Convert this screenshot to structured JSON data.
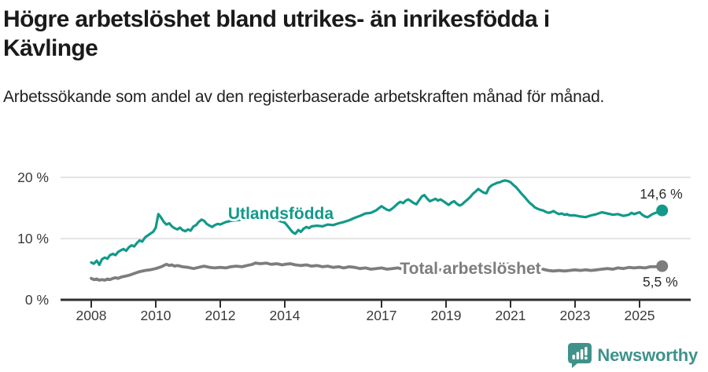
{
  "header": {
    "title": "Högre arbetslöshet bland utrikes- än inrikesfödda i Kävlinge",
    "subtitle": "Arbetssökande som andel av den registerbaserade arbetskraften månad för månad."
  },
  "footer": {
    "brand": "Newsworthy",
    "logo_icon": "bar-chart-speech-bubble-icon"
  },
  "colors": {
    "accent_teal": "#12998a",
    "series_gray": "#7d7d7d",
    "gridline": "#dcdcdc",
    "axis": "#2f2f2f",
    "tick_text": "#3a3a3a",
    "annotation_text": "#2b2b2b",
    "brand_teal": "#3f928b"
  },
  "chart_data": {
    "type": "line",
    "title": "Högre arbetslöshet bland utrikes- än inrikesfödda i Kävlinge",
    "subtitle": "Arbetssökande som andel av den registerbaserade arbetskraften månad för månad.",
    "xlabel": "",
    "ylabel": "",
    "xlim": [
      2007.6,
      2026.3
    ],
    "ylim": [
      0,
      21.5
    ],
    "grid": "horizontal",
    "legend_position": "inline-labels",
    "x_ticks": [
      2008,
      2010,
      2012,
      2014,
      2017,
      2019,
      2021,
      2023,
      2025
    ],
    "y_ticks": [
      {
        "value": 0,
        "label": "0 %"
      },
      {
        "value": 10,
        "label": "10 %"
      },
      {
        "value": 20,
        "label": "20 %"
      }
    ],
    "series": [
      {
        "name": "Utlandsfödda",
        "color": "#12998a",
        "end_label": "14,6 %",
        "last_value": 14.6,
        "points": [
          [
            2008.0,
            6.1
          ],
          [
            2008.08,
            5.9
          ],
          [
            2008.17,
            6.4
          ],
          [
            2008.25,
            5.7
          ],
          [
            2008.33,
            6.6
          ],
          [
            2008.42,
            6.9
          ],
          [
            2008.5,
            6.7
          ],
          [
            2008.58,
            7.3
          ],
          [
            2008.67,
            7.5
          ],
          [
            2008.75,
            7.3
          ],
          [
            2008.83,
            7.8
          ],
          [
            2008.92,
            8.1
          ],
          [
            2009.0,
            8.3
          ],
          [
            2009.08,
            8.0
          ],
          [
            2009.17,
            8.6
          ],
          [
            2009.25,
            8.9
          ],
          [
            2009.33,
            8.7
          ],
          [
            2009.42,
            9.3
          ],
          [
            2009.5,
            9.7
          ],
          [
            2009.58,
            9.5
          ],
          [
            2009.67,
            10.2
          ],
          [
            2009.75,
            10.5
          ],
          [
            2009.83,
            10.8
          ],
          [
            2009.92,
            11.1
          ],
          [
            2010.0,
            11.8
          ],
          [
            2010.08,
            14.0
          ],
          [
            2010.17,
            13.4
          ],
          [
            2010.25,
            12.7
          ],
          [
            2010.33,
            12.3
          ],
          [
            2010.42,
            12.5
          ],
          [
            2010.5,
            12.0
          ],
          [
            2010.58,
            11.7
          ],
          [
            2010.67,
            11.5
          ],
          [
            2010.75,
            11.8
          ],
          [
            2010.83,
            11.4
          ],
          [
            2010.92,
            11.2
          ],
          [
            2011.0,
            11.5
          ],
          [
            2011.08,
            11.3
          ],
          [
            2011.17,
            12.0
          ],
          [
            2011.25,
            12.2
          ],
          [
            2011.33,
            12.7
          ],
          [
            2011.42,
            13.1
          ],
          [
            2011.5,
            12.9
          ],
          [
            2011.58,
            12.4
          ],
          [
            2011.67,
            12.1
          ],
          [
            2011.75,
            11.9
          ],
          [
            2011.83,
            12.2
          ],
          [
            2011.92,
            12.4
          ],
          [
            2012.0,
            12.3
          ],
          [
            2012.17,
            12.7
          ],
          [
            2012.33,
            12.9
          ],
          [
            2012.5,
            13.0
          ],
          [
            2012.67,
            13.1
          ],
          [
            2012.83,
            13.2
          ],
          [
            2013.0,
            13.4
          ],
          [
            2013.17,
            13.6
          ],
          [
            2013.33,
            13.3
          ],
          [
            2013.5,
            13.1
          ],
          [
            2013.67,
            13.2
          ],
          [
            2013.83,
            12.9
          ],
          [
            2014.0,
            12.6
          ],
          [
            2014.08,
            12.1
          ],
          [
            2014.17,
            11.5
          ],
          [
            2014.25,
            11.0
          ],
          [
            2014.33,
            10.8
          ],
          [
            2014.42,
            11.4
          ],
          [
            2014.5,
            11.1
          ],
          [
            2014.58,
            11.6
          ],
          [
            2014.67,
            11.9
          ],
          [
            2014.75,
            11.7
          ],
          [
            2014.83,
            12.0
          ],
          [
            2015.0,
            12.1
          ],
          [
            2015.17,
            12.0
          ],
          [
            2015.33,
            12.3
          ],
          [
            2015.5,
            12.2
          ],
          [
            2015.67,
            12.5
          ],
          [
            2015.83,
            12.7
          ],
          [
            2016.0,
            13.0
          ],
          [
            2016.17,
            13.4
          ],
          [
            2016.33,
            13.7
          ],
          [
            2016.5,
            14.1
          ],
          [
            2016.67,
            14.2
          ],
          [
            2016.83,
            14.6
          ],
          [
            2017.0,
            15.3
          ],
          [
            2017.08,
            15.0
          ],
          [
            2017.17,
            14.7
          ],
          [
            2017.25,
            14.6
          ],
          [
            2017.33,
            14.9
          ],
          [
            2017.42,
            15.3
          ],
          [
            2017.5,
            15.7
          ],
          [
            2017.58,
            16.0
          ],
          [
            2017.67,
            15.8
          ],
          [
            2017.75,
            16.2
          ],
          [
            2017.83,
            16.4
          ],
          [
            2017.92,
            16.1
          ],
          [
            2018.0,
            15.8
          ],
          [
            2018.08,
            15.6
          ],
          [
            2018.17,
            16.3
          ],
          [
            2018.25,
            16.9
          ],
          [
            2018.33,
            17.1
          ],
          [
            2018.42,
            16.5
          ],
          [
            2018.5,
            16.1
          ],
          [
            2018.58,
            16.3
          ],
          [
            2018.67,
            16.5
          ],
          [
            2018.75,
            16.2
          ],
          [
            2018.83,
            16.4
          ],
          [
            2018.92,
            16.1
          ],
          [
            2019.0,
            15.8
          ],
          [
            2019.08,
            15.5
          ],
          [
            2019.17,
            15.9
          ],
          [
            2019.25,
            16.1
          ],
          [
            2019.33,
            15.7
          ],
          [
            2019.42,
            15.4
          ],
          [
            2019.5,
            15.6
          ],
          [
            2019.58,
            16.0
          ],
          [
            2019.67,
            16.4
          ],
          [
            2019.75,
            16.8
          ],
          [
            2019.83,
            17.3
          ],
          [
            2019.92,
            17.7
          ],
          [
            2020.0,
            18.1
          ],
          [
            2020.08,
            17.8
          ],
          [
            2020.17,
            17.5
          ],
          [
            2020.25,
            17.4
          ],
          [
            2020.33,
            18.3
          ],
          [
            2020.42,
            18.7
          ],
          [
            2020.5,
            18.9
          ],
          [
            2020.58,
            19.1
          ],
          [
            2020.67,
            19.2
          ],
          [
            2020.75,
            19.4
          ],
          [
            2020.83,
            19.5
          ],
          [
            2020.92,
            19.4
          ],
          [
            2021.0,
            19.2
          ],
          [
            2021.08,
            18.8
          ],
          [
            2021.17,
            18.4
          ],
          [
            2021.25,
            17.9
          ],
          [
            2021.33,
            17.4
          ],
          [
            2021.42,
            16.9
          ],
          [
            2021.5,
            16.4
          ],
          [
            2021.58,
            15.9
          ],
          [
            2021.67,
            15.5
          ],
          [
            2021.75,
            15.1
          ],
          [
            2021.83,
            14.9
          ],
          [
            2021.92,
            14.7
          ],
          [
            2022.0,
            14.6
          ],
          [
            2022.08,
            14.4
          ],
          [
            2022.17,
            14.2
          ],
          [
            2022.25,
            14.3
          ],
          [
            2022.33,
            14.5
          ],
          [
            2022.42,
            14.2
          ],
          [
            2022.5,
            14.0
          ],
          [
            2022.58,
            14.1
          ],
          [
            2022.67,
            13.9
          ],
          [
            2022.75,
            14.0
          ],
          [
            2022.83,
            13.8
          ],
          [
            2023.0,
            13.8
          ],
          [
            2023.17,
            13.6
          ],
          [
            2023.33,
            13.5
          ],
          [
            2023.5,
            13.8
          ],
          [
            2023.67,
            14.0
          ],
          [
            2023.83,
            14.3
          ],
          [
            2024.0,
            14.1
          ],
          [
            2024.17,
            13.9
          ],
          [
            2024.33,
            14.0
          ],
          [
            2024.5,
            13.7
          ],
          [
            2024.67,
            13.9
          ],
          [
            2024.75,
            14.2
          ],
          [
            2024.83,
            14.0
          ],
          [
            2025.0,
            14.3
          ],
          [
            2025.08,
            13.9
          ],
          [
            2025.17,
            13.6
          ],
          [
            2025.25,
            13.5
          ],
          [
            2025.4,
            14.0
          ],
          [
            2025.55,
            14.3
          ],
          [
            2025.7,
            14.6
          ]
        ]
      },
      {
        "name": "Total arbetslöshet",
        "color": "#7d7d7d",
        "end_label": "5,5 %",
        "last_value": 5.5,
        "points": [
          [
            2008.0,
            3.5
          ],
          [
            2008.08,
            3.3
          ],
          [
            2008.17,
            3.4
          ],
          [
            2008.25,
            3.2
          ],
          [
            2008.33,
            3.3
          ],
          [
            2008.42,
            3.2
          ],
          [
            2008.5,
            3.4
          ],
          [
            2008.58,
            3.3
          ],
          [
            2008.67,
            3.5
          ],
          [
            2008.75,
            3.6
          ],
          [
            2008.83,
            3.5
          ],
          [
            2008.92,
            3.7
          ],
          [
            2009.0,
            3.8
          ],
          [
            2009.17,
            4.0
          ],
          [
            2009.33,
            4.3
          ],
          [
            2009.5,
            4.6
          ],
          [
            2009.67,
            4.8
          ],
          [
            2009.83,
            4.9
          ],
          [
            2010.0,
            5.1
          ],
          [
            2010.17,
            5.4
          ],
          [
            2010.25,
            5.6
          ],
          [
            2010.33,
            5.8
          ],
          [
            2010.42,
            5.6
          ],
          [
            2010.5,
            5.7
          ],
          [
            2010.58,
            5.5
          ],
          [
            2010.67,
            5.6
          ],
          [
            2010.83,
            5.4
          ],
          [
            2011.0,
            5.3
          ],
          [
            2011.17,
            5.1
          ],
          [
            2011.33,
            5.3
          ],
          [
            2011.5,
            5.5
          ],
          [
            2011.67,
            5.3
          ],
          [
            2011.83,
            5.2
          ],
          [
            2012.0,
            5.3
          ],
          [
            2012.17,
            5.2
          ],
          [
            2012.33,
            5.4
          ],
          [
            2012.5,
            5.5
          ],
          [
            2012.67,
            5.4
          ],
          [
            2012.83,
            5.6
          ],
          [
            2013.0,
            5.8
          ],
          [
            2013.08,
            6.0
          ],
          [
            2013.25,
            5.9
          ],
          [
            2013.42,
            6.0
          ],
          [
            2013.58,
            5.8
          ],
          [
            2013.75,
            5.9
          ],
          [
            2013.92,
            5.7
          ],
          [
            2014.0,
            5.8
          ],
          [
            2014.17,
            5.9
          ],
          [
            2014.33,
            5.7
          ],
          [
            2014.5,
            5.6
          ],
          [
            2014.67,
            5.7
          ],
          [
            2014.83,
            5.5
          ],
          [
            2015.0,
            5.6
          ],
          [
            2015.17,
            5.4
          ],
          [
            2015.33,
            5.5
          ],
          [
            2015.5,
            5.3
          ],
          [
            2015.67,
            5.4
          ],
          [
            2015.83,
            5.2
          ],
          [
            2016.0,
            5.4
          ],
          [
            2016.17,
            5.3
          ],
          [
            2016.33,
            5.1
          ],
          [
            2016.5,
            5.2
          ],
          [
            2016.67,
            5.0
          ],
          [
            2016.83,
            5.1
          ],
          [
            2017.0,
            5.2
          ],
          [
            2017.17,
            5.0
          ],
          [
            2017.33,
            5.1
          ],
          [
            2017.5,
            5.2
          ],
          [
            2017.67,
            5.0
          ],
          [
            2017.83,
            4.9
          ],
          [
            2018.0,
            5.0
          ],
          [
            2018.17,
            4.8
          ],
          [
            2018.33,
            4.9
          ],
          [
            2018.5,
            4.7
          ],
          [
            2018.67,
            4.8
          ],
          [
            2018.83,
            4.9
          ],
          [
            2019.0,
            4.8
          ],
          [
            2019.17,
            4.9
          ],
          [
            2019.33,
            5.0
          ],
          [
            2019.5,
            4.9
          ],
          [
            2019.67,
            5.0
          ],
          [
            2019.83,
            5.1
          ],
          [
            2020.0,
            5.2
          ],
          [
            2020.17,
            5.5
          ],
          [
            2020.33,
            5.8
          ],
          [
            2020.5,
            5.9
          ],
          [
            2020.67,
            5.8
          ],
          [
            2020.83,
            5.9
          ],
          [
            2021.0,
            5.8
          ],
          [
            2021.17,
            5.7
          ],
          [
            2021.33,
            5.6
          ],
          [
            2021.5,
            5.4
          ],
          [
            2021.67,
            5.2
          ],
          [
            2021.83,
            5.1
          ],
          [
            2022.0,
            5.0
          ],
          [
            2022.17,
            4.8
          ],
          [
            2022.33,
            4.7
          ],
          [
            2022.5,
            4.8
          ],
          [
            2022.67,
            4.7
          ],
          [
            2022.83,
            4.8
          ],
          [
            2023.0,
            4.9
          ],
          [
            2023.17,
            4.8
          ],
          [
            2023.33,
            4.9
          ],
          [
            2023.5,
            4.8
          ],
          [
            2023.67,
            4.9
          ],
          [
            2023.83,
            5.0
          ],
          [
            2024.0,
            5.1
          ],
          [
            2024.17,
            5.0
          ],
          [
            2024.33,
            5.2
          ],
          [
            2024.5,
            5.1
          ],
          [
            2024.67,
            5.3
          ],
          [
            2024.83,
            5.2
          ],
          [
            2025.0,
            5.3
          ],
          [
            2025.17,
            5.2
          ],
          [
            2025.33,
            5.4
          ],
          [
            2025.55,
            5.4
          ],
          [
            2025.7,
            5.5
          ]
        ]
      }
    ]
  }
}
